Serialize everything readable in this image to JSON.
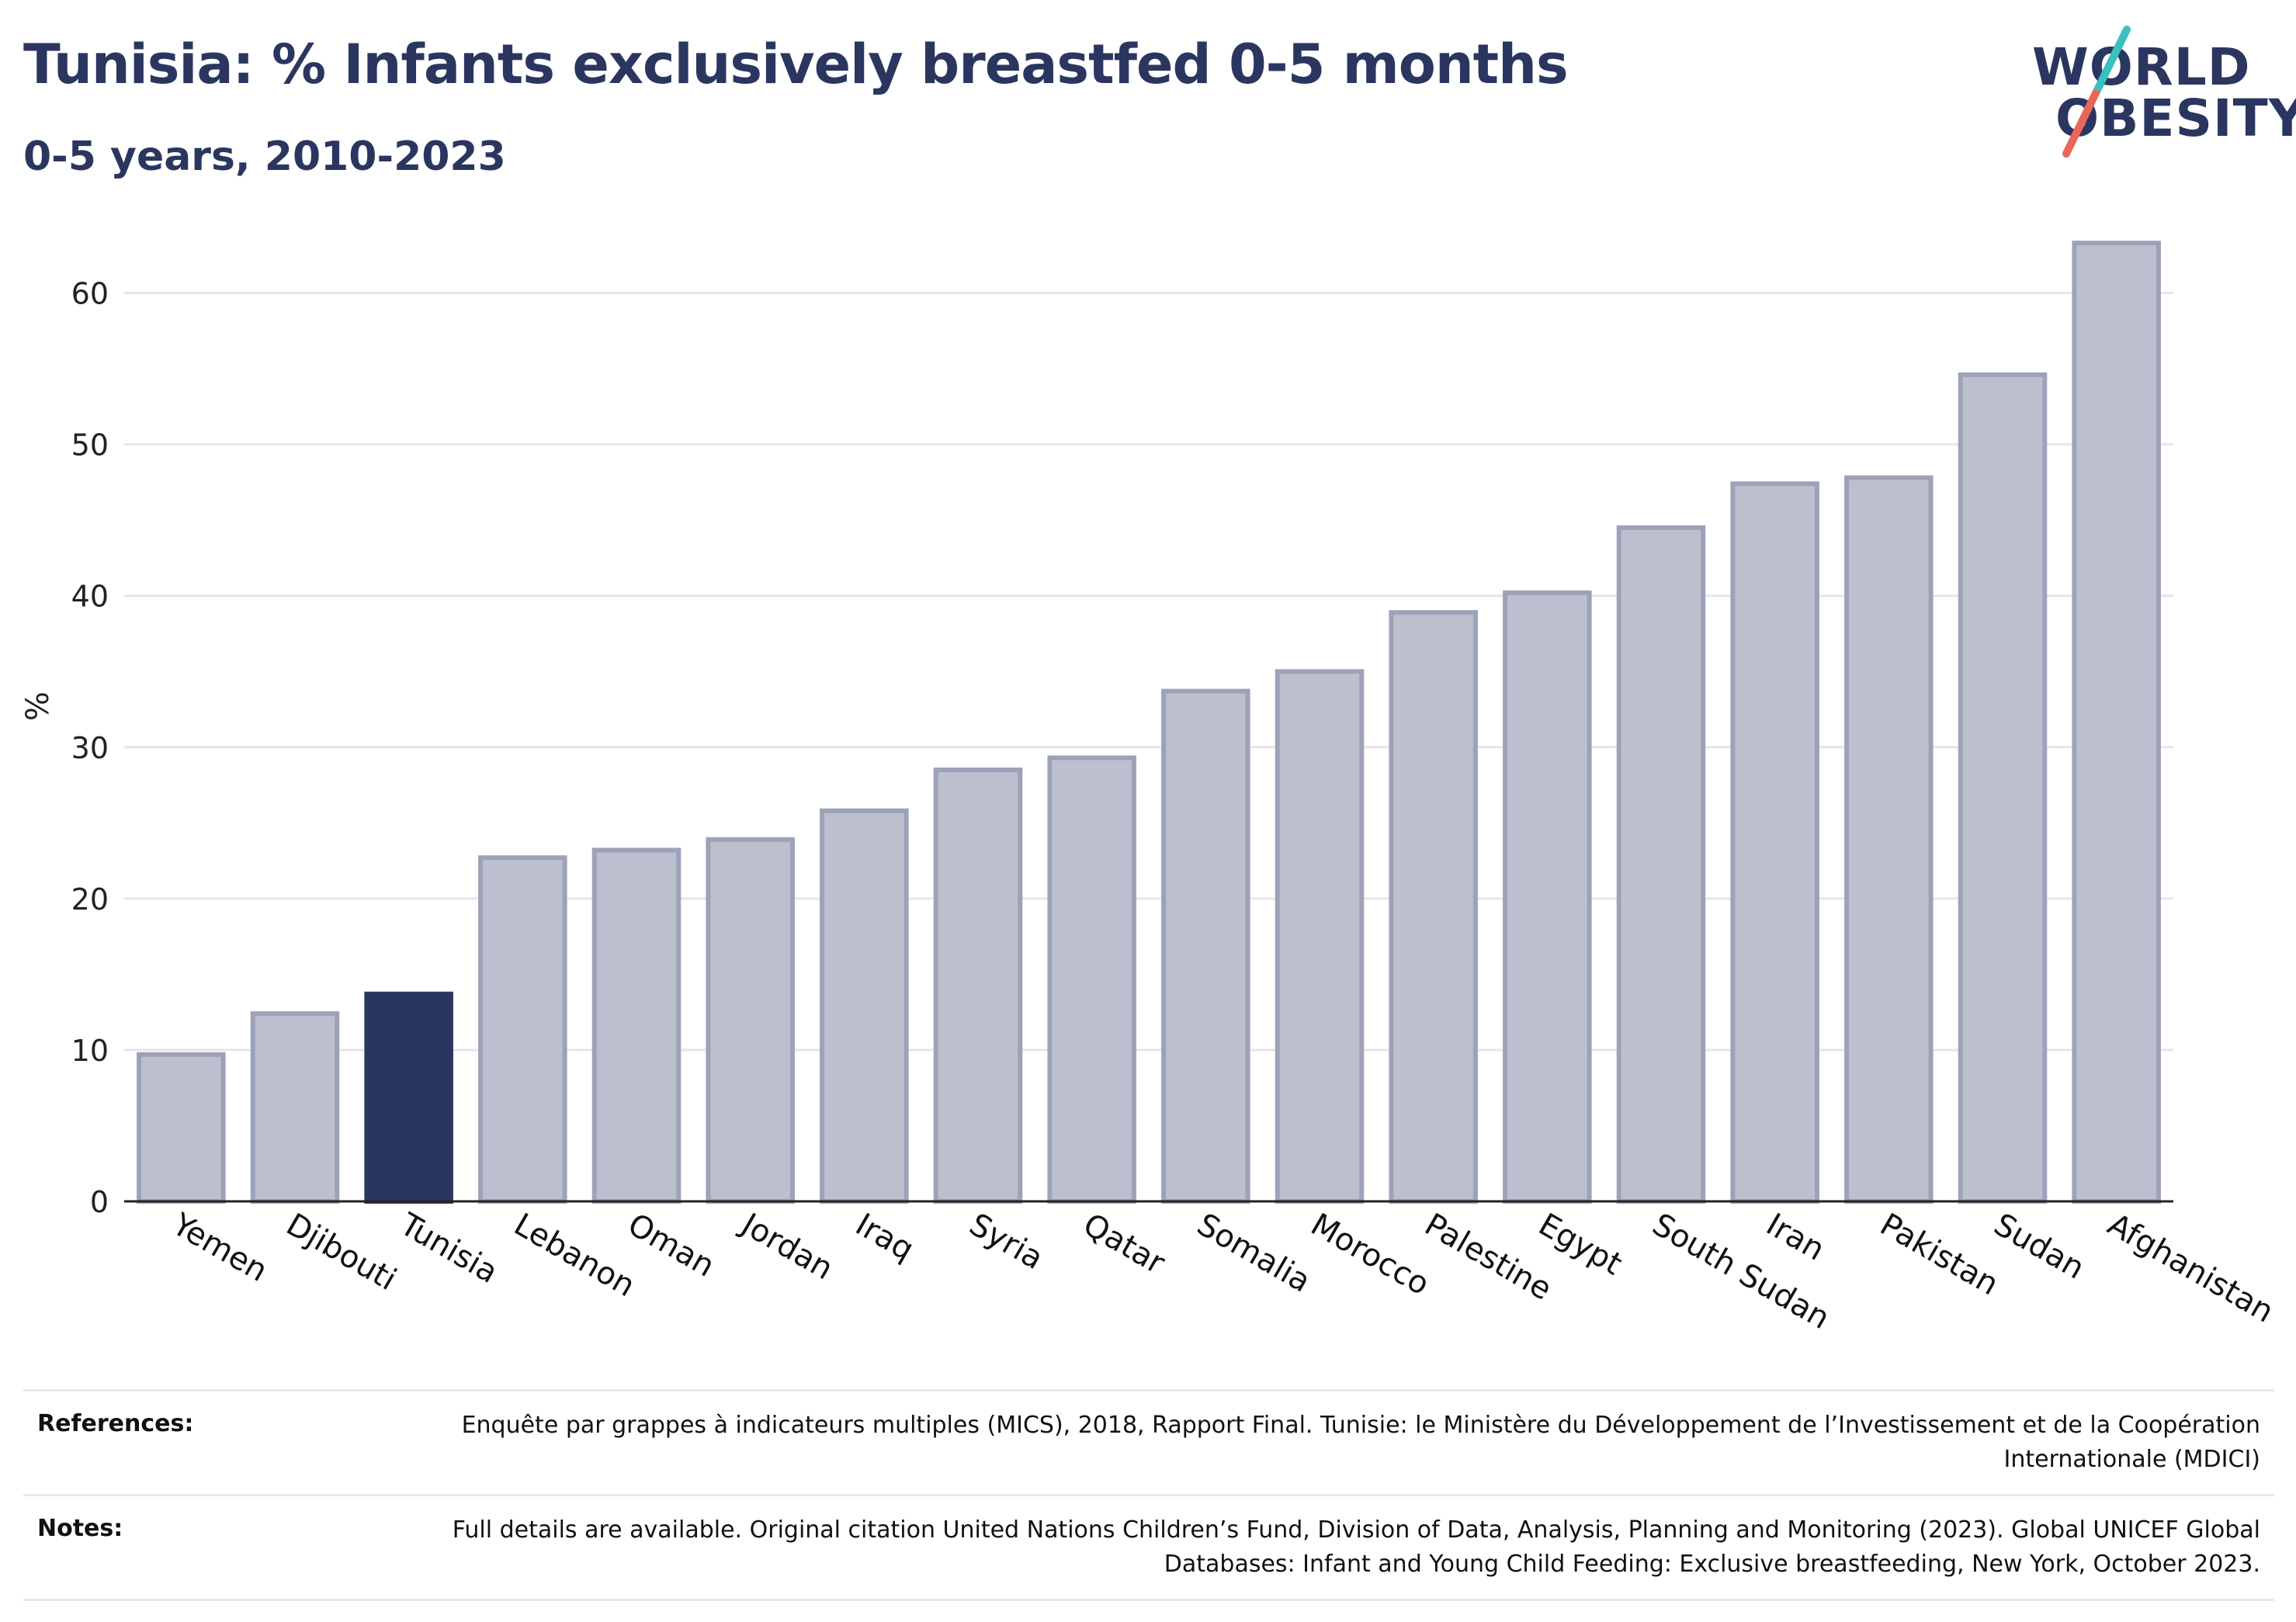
{
  "title": "Tunisia: % Infants exclusively breastfed 0-5 months",
  "subtitle": "0-5 years, 2010-2023",
  "logo": {
    "line1": "WORLD",
    "line2": "OBESITY"
  },
  "references": {
    "label": "References:",
    "text": "Enquête par grappes à indicateurs multiples (MICS), 2018, Rapport Final. Tunisie: le Ministère du Développement de l’Investissement et de la Coopération Internationale (MDICI)"
  },
  "notes": {
    "label": "Notes:",
    "text": "Full details are available. Original citation United Nations Children’s Fund, Division of Data, Analysis, Planning and Monitoring (2023). Global UNICEF Global Databases: Infant and Young Child Feeding: Exclusive breastfeeding, New York, October 2023."
  },
  "colors": {
    "highlight": "#2b3660",
    "bar": "#bcc0ce",
    "bar_border": "#9da2b8",
    "logo_teal": "#3bbfbf",
    "logo_coral": "#e8675a"
  },
  "chart_data": {
    "type": "bar",
    "ylabel": "%",
    "xlabel": "",
    "ylim": [
      0,
      65
    ],
    "yticks": [
      0,
      10,
      20,
      30,
      40,
      50,
      60
    ],
    "grid": true,
    "highlight": "Tunisia",
    "categories": [
      "Yemen",
      "Djibouti",
      "Tunisia",
      "Lebanon",
      "Oman",
      "Jordan",
      "Iraq",
      "Syria",
      "Qatar",
      "Somalia",
      "Morocco",
      "Palestine",
      "Egypt",
      "South Sudan",
      "Iran",
      "Pakistan",
      "Sudan",
      "Afghanistan"
    ],
    "values": [
      9.7,
      12.4,
      13.7,
      22.7,
      23.2,
      23.9,
      25.8,
      28.5,
      29.3,
      33.7,
      35.0,
      38.9,
      40.2,
      44.5,
      47.4,
      47.8,
      54.6,
      63.3
    ]
  }
}
